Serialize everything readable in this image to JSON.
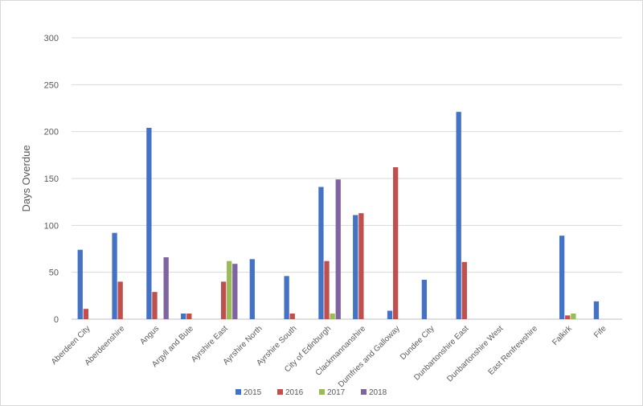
{
  "chart_data": {
    "type": "bar",
    "title": "",
    "xlabel": "",
    "ylabel": "Days Overdue",
    "ylim": [
      0,
      300
    ],
    "yticks": [
      0,
      50,
      100,
      150,
      200,
      250,
      300
    ],
    "grid": true,
    "legend_position": "bottom",
    "categories": [
      "Aberdeen City",
      "Aberdeenshire",
      "Angus",
      "Argyll and Bute",
      "Ayrshire East",
      "Ayrshire North",
      "Ayrshire South",
      "City of Edinburgh",
      "Clackmannanshire",
      "Dumfries and Galloway",
      "Dundee City",
      "Dunbartonshire East",
      "Dunbartonshire West",
      "East Renfrewshire",
      "Falkirk",
      "Fife"
    ],
    "series": [
      {
        "name": "2015",
        "color": "#4472c4",
        "values": [
          74,
          92,
          204,
          6,
          null,
          64,
          46,
          141,
          111,
          9,
          42,
          221,
          null,
          null,
          89,
          19
        ]
      },
      {
        "name": "2016",
        "color": "#c0504d",
        "values": [
          11,
          40,
          29,
          6,
          40,
          null,
          6,
          62,
          113,
          162,
          null,
          61,
          null,
          null,
          4,
          null
        ]
      },
      {
        "name": "2017",
        "color": "#9bbb59",
        "values": [
          null,
          null,
          null,
          null,
          62,
          null,
          null,
          6,
          null,
          null,
          null,
          null,
          null,
          null,
          6,
          null
        ]
      },
      {
        "name": "2018",
        "color": "#8064a2",
        "values": [
          null,
          null,
          66,
          null,
          59,
          null,
          null,
          149,
          null,
          null,
          null,
          null,
          null,
          null,
          null,
          null
        ]
      }
    ]
  }
}
